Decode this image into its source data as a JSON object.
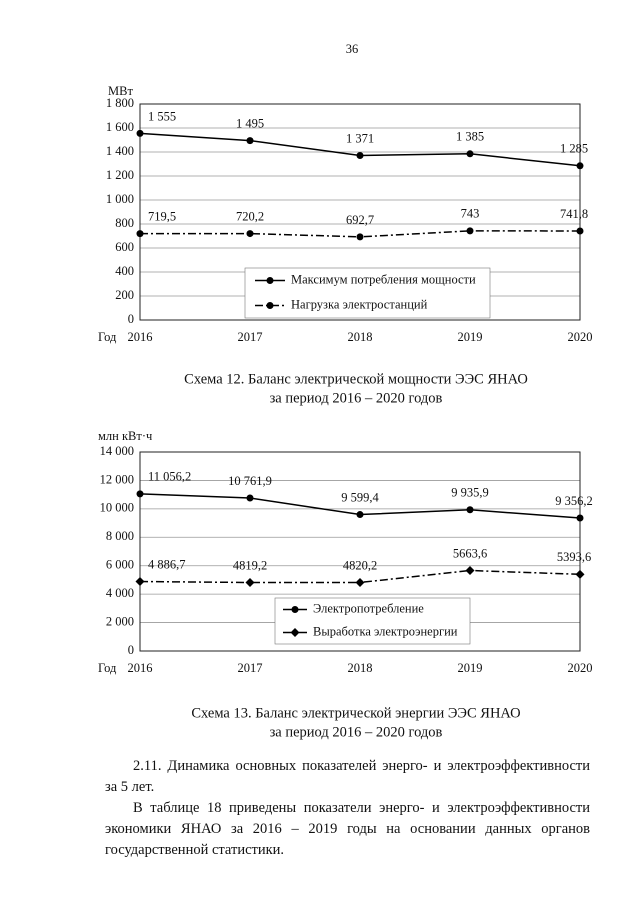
{
  "page_number": "36",
  "chart_data": [
    {
      "type": "line",
      "y_label": "МВт",
      "x_label": "Год",
      "categories": [
        "2016",
        "2017",
        "2018",
        "2019",
        "2020"
      ],
      "ylim": [
        0,
        1800
      ],
      "yticks": [
        0,
        200,
        400,
        600,
        800,
        {
          "value": 1000,
          "label": "1 000"
        },
        {
          "value": 1200,
          "label": "1 200"
        },
        {
          "value": 1400,
          "label": "1 400"
        },
        {
          "value": 1600,
          "label": "1 600"
        },
        {
          "value": 1800,
          "label": "1 800"
        }
      ],
      "grid": true,
      "series": [
        {
          "name": "Максимум потребления мощности",
          "color": "#000000",
          "dash": "solid",
          "marker": "circle",
          "values": [
            1555,
            1495,
            1371,
            1385,
            1285
          ],
          "value_labels": [
            "1 555",
            "1 495",
            "1 371",
            "1 385",
            "1 285"
          ]
        },
        {
          "name": "Нагрузка электростанций",
          "color": "#000000",
          "dash": "dashdot",
          "marker": "circle",
          "values": [
            719.5,
            720.2,
            692.7,
            743,
            741.8
          ],
          "value_labels": [
            "719,5",
            "720,2",
            "692,7",
            "743",
            "741,8"
          ]
        }
      ],
      "caption": [
        "Схема 12. Баланс электрической мощности ЭЭС ЯНАО",
        "за период 2016 – 2020 годов"
      ]
    },
    {
      "type": "line",
      "y_label": "млн кВт·ч",
      "x_label": "Год",
      "categories": [
        "2016",
        "2017",
        "2018",
        "2019",
        "2020"
      ],
      "ylim": [
        0,
        14000
      ],
      "yticks": [
        0,
        {
          "value": 2000,
          "label": "2 000"
        },
        {
          "value": 4000,
          "label": "4 000"
        },
        {
          "value": 6000,
          "label": "6 000"
        },
        {
          "value": 8000,
          "label": "8 000"
        },
        {
          "value": 10000,
          "label": "10 000"
        },
        {
          "value": 12000,
          "label": "12 000"
        },
        {
          "value": 14000,
          "label": "14 000"
        }
      ],
      "grid": true,
      "series": [
        {
          "name": "Электропотребление",
          "color": "#000000",
          "dash": "solid",
          "marker": "circle",
          "values": [
            11056.2,
            10761.9,
            9599.4,
            9935.9,
            9356.2
          ],
          "value_labels": [
            "11 056,2",
            "10 761,9",
            "9 599,4",
            "9 935,9",
            "9 356,2"
          ]
        },
        {
          "name": "Выработка электроэнергии",
          "color": "#000000",
          "dash": "dashdot",
          "marker": "diamond",
          "values": [
            4886.7,
            4819.2,
            4820.2,
            5663.6,
            5393.6
          ],
          "value_labels": [
            "4 886,7",
            "4819,2",
            "4820,2",
            "5663,6",
            "5393,6"
          ]
        }
      ],
      "caption": [
        "Схема 13. Баланс электрической энергии ЭЭС ЯНАО",
        "за период 2016 – 2020 годов"
      ]
    }
  ],
  "paragraphs": [
    "2.11. Динамика основных показателей энерго- и электроэффективности за 5 лет.",
    "В таблице 18 приведены показатели энерго- и электроэффективности экономики ЯНАО за 2016 – 2019 годы на основании данных органов государственной статистики."
  ]
}
